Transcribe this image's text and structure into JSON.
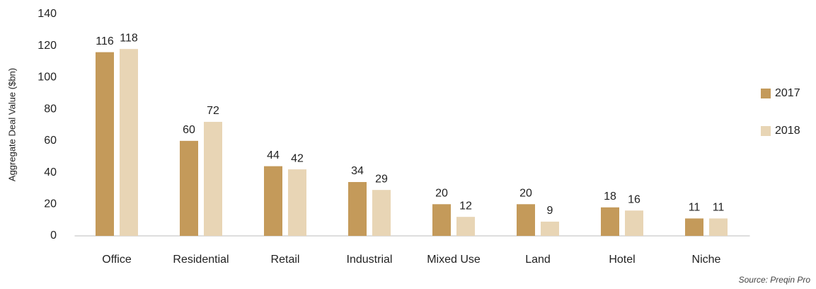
{
  "chart_data": {
    "type": "bar",
    "y_label": "Aggregate Deal Value ($bn)",
    "source": "Source: Preqin Pro",
    "categories": [
      "Office",
      "Residential",
      "Retail",
      "Industrial",
      "Mixed Use",
      "Land",
      "Hotel",
      "Niche"
    ],
    "series": [
      {
        "name": "2017",
        "color": "#c49a5a",
        "values": [
          116,
          60,
          44,
          34,
          20,
          20,
          18,
          11
        ]
      },
      {
        "name": "2018",
        "color": "#e8d5b5",
        "values": [
          118,
          72,
          42,
          29,
          12,
          9,
          16,
          11
        ]
      }
    ],
    "ylim": [
      0,
      140
    ],
    "yticks": [
      0,
      20,
      40,
      60,
      80,
      100,
      120,
      140
    ],
    "grid": false,
    "legend": "right"
  }
}
